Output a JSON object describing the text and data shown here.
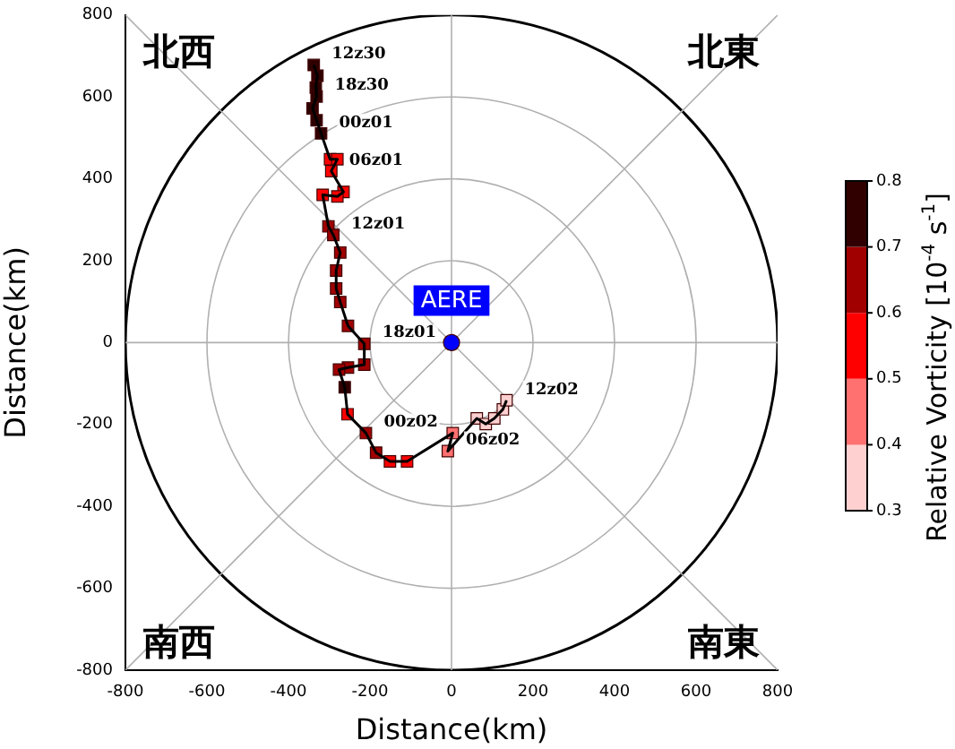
{
  "chart_data": {
    "type": "scatter",
    "xlabel": "Distance(km)",
    "ylabel": "Distance(km)",
    "clabel": "Relative Vorticity [10$^{-4}$ s$^{-1}$]",
    "xlim": [
      -800,
      800
    ],
    "ylim": [
      -800,
      800
    ],
    "xticks": [
      -800,
      -600,
      -400,
      -200,
      0,
      200,
      400,
      600,
      800
    ],
    "yticks": [
      -800,
      -600,
      -400,
      -200,
      0,
      200,
      400,
      600,
      800
    ],
    "clim": [
      0.3,
      0.8
    ],
    "cticks": [
      0.3,
      0.4,
      0.5,
      0.6,
      0.7,
      0.8
    ],
    "grid": true,
    "marker": "square",
    "series": [
      {
        "type": "line",
        "color": "#000000",
        "marker": "none",
        "line_style": "solid",
        "x": [
          -338,
          -329,
          -333,
          -331,
          -341,
          -331,
          -320,
          -298,
          -280,
          -295,
          -265,
          -280,
          -316,
          -302,
          -290,
          -273,
          -283,
          -283,
          -273,
          -254,
          -214,
          -214,
          -254,
          -276,
          -262,
          -255,
          -210,
          -185,
          -151,
          -109,
          3,
          -9,
          62,
          84,
          105,
          126,
          135
        ],
        "values": [
          678,
          652,
          623,
          601,
          572,
          543,
          511,
          448,
          448,
          419,
          368,
          357,
          361,
          284,
          263,
          220,
          176,
          132,
          99,
          41,
          -3,
          -54,
          -61,
          -66,
          -109,
          -175,
          -221,
          -269,
          -290,
          -290,
          -221,
          -265,
          -185,
          -199,
          -185,
          -163,
          -141
        ]
      },
      {
        "x": [
          -338,
          -329,
          -333,
          -331,
          -341,
          -331,
          -320,
          -298,
          -280,
          -295,
          -265,
          -280,
          -316,
          -302,
          -290,
          -273,
          -283,
          -283,
          -273,
          -254,
          -214,
          -214,
          -254,
          -276,
          -262,
          -255,
          -210,
          -185,
          -151,
          -109,
          3,
          -9,
          62,
          84,
          105,
          126,
          135
        ],
        "values": [
          678,
          652,
          623,
          601,
          572,
          543,
          511,
          448,
          448,
          419,
          368,
          357,
          361,
          284,
          263,
          220,
          176,
          132,
          99,
          41,
          -3,
          -54,
          -61,
          -66,
          -109,
          -175,
          -221,
          -269,
          -290,
          -290,
          -221,
          -265,
          -185,
          -199,
          -185,
          -163,
          -141
        ],
        "colors": [
          "#300000",
          "#300000",
          "#300000",
          "#300000",
          "#300000",
          "#300000",
          "#300000",
          "#ff0000",
          "#ff0000",
          "#ff0000",
          "#ff0000",
          "#ff0000",
          "#ff0000",
          "#a00000",
          "#a00000",
          "#a00000",
          "#a00000",
          "#a00000",
          "#a00000",
          "#a00000",
          "#a00000",
          "#a00000",
          "#a00000",
          "#a00000",
          "#300000",
          "#ff0000",
          "#a00000",
          "#a00000",
          "#ff0000",
          "#ff0000",
          "#ff7070",
          "#ff7070",
          "#ffd0d0",
          "#ffd0d0",
          "#ffd0d0",
          "#ffd0d0",
          "#ffd0d0"
        ]
      },
      {
        "marker": "circle",
        "color": "#0000ff",
        "x": [
          0
        ],
        "values": [
          0
        ]
      }
    ],
    "annotations": [
      {
        "text": "12z30",
        "x": -338,
        "y": 678
      },
      {
        "text": "18z30",
        "x": -331,
        "y": 601
      },
      {
        "text": "00z01",
        "x": -320,
        "y": 511
      },
      {
        "text": "06z01",
        "x": -295,
        "y": 419
      },
      {
        "text": "12z01",
        "x": -290,
        "y": 263
      },
      {
        "text": "18z01",
        "x": -214,
        "y": -3
      },
      {
        "text": "00z02",
        "x": -210,
        "y": -221
      },
      {
        "text": "06z02",
        "x": -9,
        "y": -265
      },
      {
        "text": "12z02",
        "x": 135,
        "y": -141
      },
      {
        "text": "AERE",
        "x": 0,
        "y": 0
      },
      "北西",
      "北東",
      "南西",
      "南東"
    ]
  }
}
